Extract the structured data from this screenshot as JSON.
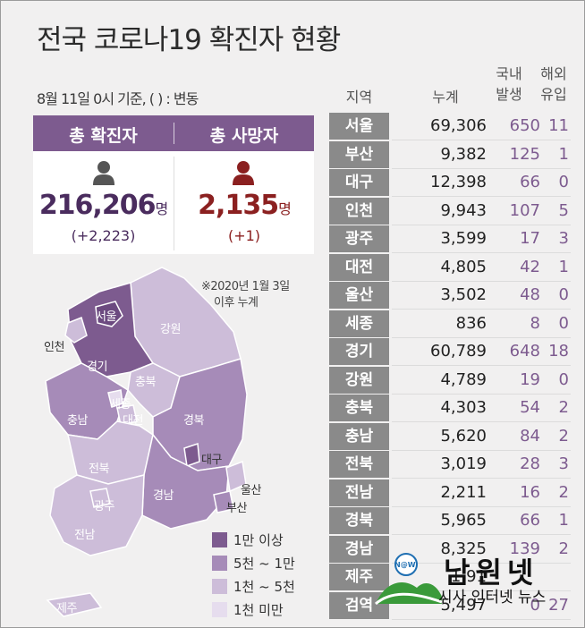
{
  "title": "전국 코로나19 확진자 현황",
  "subtitle": "8월 11일 0시 기준, ( ) : 변동",
  "summary": {
    "confirmed_label": "총 확진자",
    "confirmed_value": "216,206",
    "confirmed_unit": "명",
    "confirmed_delta": "(+2,223)",
    "deaths_label": "총 사망자",
    "deaths_value": "2,135",
    "deaths_unit": "명",
    "deaths_delta": "(+1)"
  },
  "note": [
    "※2020년 1월 3일",
    "이후 누계"
  ],
  "legend": [
    {
      "label": "1만 이상",
      "color": "#7d5b8f"
    },
    {
      "label": "5천 ~ 1만",
      "color": "#a68bb8"
    },
    {
      "label": "1천 ~ 5천",
      "color": "#cdbdd9"
    },
    {
      "label": "1천 미만",
      "color": "#e6ddee"
    }
  ],
  "map_labels": [
    "서울",
    "인천",
    "경기",
    "강원",
    "충북",
    "세종",
    "대전",
    "충남",
    "경북",
    "대구",
    "전북",
    "울산",
    "부산",
    "광주",
    "경남",
    "전남",
    "제주"
  ],
  "columns": {
    "region": "지역",
    "cumulative": "누계",
    "domestic": [
      "국내",
      "발생"
    ],
    "overseas": [
      "해외",
      "유입"
    ]
  },
  "chart_data": {
    "type": "table",
    "columns": [
      "지역",
      "누계",
      "국내 발생",
      "해외 유입"
    ],
    "rows": [
      {
        "region": "서울",
        "cumulative": "69,306",
        "domestic": "650",
        "overseas": "11"
      },
      {
        "region": "부산",
        "cumulative": "9,382",
        "domestic": "125",
        "overseas": "1"
      },
      {
        "region": "대구",
        "cumulative": "12,398",
        "domestic": "66",
        "overseas": "0"
      },
      {
        "region": "인천",
        "cumulative": "9,943",
        "domestic": "107",
        "overseas": "5"
      },
      {
        "region": "광주",
        "cumulative": "3,599",
        "domestic": "17",
        "overseas": "3"
      },
      {
        "region": "대전",
        "cumulative": "4,805",
        "domestic": "42",
        "overseas": "1"
      },
      {
        "region": "울산",
        "cumulative": "3,502",
        "domestic": "48",
        "overseas": "0"
      },
      {
        "region": "세종",
        "cumulative": "836",
        "domestic": "8",
        "overseas": "0"
      },
      {
        "region": "경기",
        "cumulative": "60,789",
        "domestic": "648",
        "overseas": "18"
      },
      {
        "region": "강원",
        "cumulative": "4,789",
        "domestic": "19",
        "overseas": "0"
      },
      {
        "region": "충북",
        "cumulative": "4,303",
        "domestic": "54",
        "overseas": "2"
      },
      {
        "region": "충남",
        "cumulative": "5,620",
        "domestic": "84",
        "overseas": "2"
      },
      {
        "region": "전북",
        "cumulative": "3,019",
        "domestic": "28",
        "overseas": "3"
      },
      {
        "region": "전남",
        "cumulative": "2,211",
        "domestic": "16",
        "overseas": "2"
      },
      {
        "region": "경북",
        "cumulative": "5,965",
        "domestic": "66",
        "overseas": "1"
      },
      {
        "region": "경남",
        "cumulative": "8,325",
        "domestic": "139",
        "overseas": "2"
      },
      {
        "region": "제주",
        "cumulative": "1,91",
        "domestic": "",
        "overseas": ""
      },
      {
        "region": "검역",
        "cumulative": "5,497",
        "domestic": "0",
        "overseas": "27"
      }
    ]
  },
  "watermark": {
    "title": "남원넷",
    "subtitle": "시사 인터넷 뉴스",
    "badge": "N@W"
  },
  "colors": {
    "header_purple": "#7d5b8f",
    "death_red": "#8b2020",
    "region_gray": "#8a8a8a"
  }
}
